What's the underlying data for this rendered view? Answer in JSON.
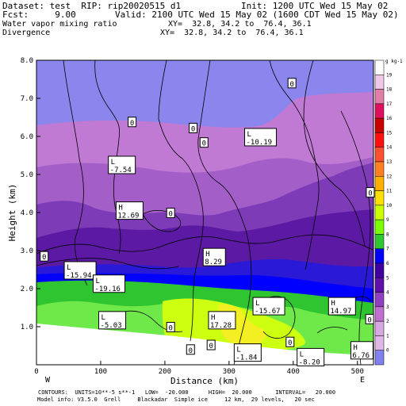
{
  "header": {
    "dataset_label": "Dataset: test  RIP: rip20020515 d1",
    "init_label": "Init: 1200 UTC Wed 15 May 02",
    "fcst_label": "Fcst:     9.00",
    "valid_label": "Valid: 2100 UTC Wed 15 May 02 (1600 CDT Wed 15 May 02)",
    "field1": "Water vapor mixing ratio",
    "field1_xy": "XY=  32.8, 34.2 to  76.4, 36.1",
    "field2": "Divergence",
    "field2_xy": "XY=  32.8, 34.2 to  76.4, 36.1"
  },
  "chart_data": {
    "type": "heatmap",
    "xlabel": "Distance  (km)",
    "ylabel": "Height  (km)",
    "xlim": [
      0,
      525
    ],
    "ylim": [
      0,
      8.0
    ],
    "x_ticks": [
      "0",
      "100",
      "200",
      "300",
      "400",
      "500"
    ],
    "y_ticks": [
      "1.0",
      "2.0",
      "3.0",
      "4.0",
      "5.0",
      "6.0",
      "7.0",
      "8.0"
    ],
    "x_end_labels": {
      "left": "W",
      "right": "E"
    },
    "colorbar": {
      "unit": "g kg-1",
      "levels": [
        "19",
        "18",
        "17",
        "16",
        "15",
        "14",
        "13",
        "12",
        "11",
        "10",
        "9",
        "8",
        "7",
        "6",
        "5",
        "4",
        "3",
        "2",
        "1",
        "0"
      ],
      "colors": [
        "#ffffff",
        "#f0c8e8",
        "#e080a8",
        "#e01060",
        "#c80000",
        "#ff1010",
        "#ff5030",
        "#ff8020",
        "#ffb000",
        "#ffe000",
        "#ccff00",
        "#7cfc00",
        "#30c830",
        "#0000ff",
        "#4000a0",
        "#6010a8",
        "#9040c0",
        "#c070d0",
        "#d8a8e0",
        "#e0b8e8",
        "#8080ee"
      ]
    },
    "annotations": [
      {
        "text": "L",
        "value": "-10.19",
        "x": 349,
        "y": 5.98
      },
      {
        "text": "L",
        "value": "-7.54",
        "x": 133,
        "y": 5.25
      },
      {
        "text": "H",
        "value": "12.69",
        "x": 145,
        "y": 4.05
      },
      {
        "text": "H",
        "value": "8.29",
        "x": 277,
        "y": 2.83
      },
      {
        "text": "L",
        "value": "-15.94",
        "x": 68,
        "y": 2.48
      },
      {
        "text": "L",
        "value": "-19.16",
        "x": 113,
        "y": 2.13
      },
      {
        "text": "L",
        "value": "-5.03",
        "x": 118,
        "y": 1.17
      },
      {
        "text": "H",
        "value": "17.28",
        "x": 289,
        "y": 1.17
      },
      {
        "text": "L",
        "value": "-15.67",
        "x": 362,
        "y": 1.54
      },
      {
        "text": "H",
        "value": "14.97",
        "x": 476,
        "y": 1.54
      },
      {
        "text": "L",
        "value": "-1.84",
        "x": 329,
        "y": 0.32
      },
      {
        "text": "L",
        "value": "-8.20",
        "x": 427,
        "y": 0.2
      },
      {
        "text": "H",
        "value": "6.76",
        "x": 507,
        "y": 0.38
      }
    ],
    "zero_labels": [
      {
        "text": "0",
        "x": 398,
        "y": 7.4
      },
      {
        "text": "0",
        "x": 149,
        "y": 6.38
      },
      {
        "text": "0",
        "x": 244,
        "y": 6.22
      },
      {
        "text": "0",
        "x": 261,
        "y": 5.84
      },
      {
        "text": "0",
        "x": 520,
        "y": 4.53
      },
      {
        "text": "0",
        "x": 209,
        "y": 3.99
      },
      {
        "text": "0",
        "x": 12,
        "y": 2.85
      },
      {
        "text": "0",
        "x": 209,
        "y": 0.99
      },
      {
        "text": "0",
        "x": 240,
        "y": 0.4
      },
      {
        "text": "0",
        "x": 272,
        "y": 0.52
      },
      {
        "text": "0",
        "x": 395,
        "y": 0.6
      },
      {
        "text": "0",
        "x": 519,
        "y": 1.2
      }
    ]
  },
  "footer": {
    "line1": "CONTOURS:  UNITS=10**-5 s**-1   LOW=  -20.000      HIGH=  20.000       INTERVAL=   20.000",
    "line2": "Model info: V3.5.0  Grell     Blackadar  Simple ice     12 km,  29 levels,   20 sec"
  }
}
